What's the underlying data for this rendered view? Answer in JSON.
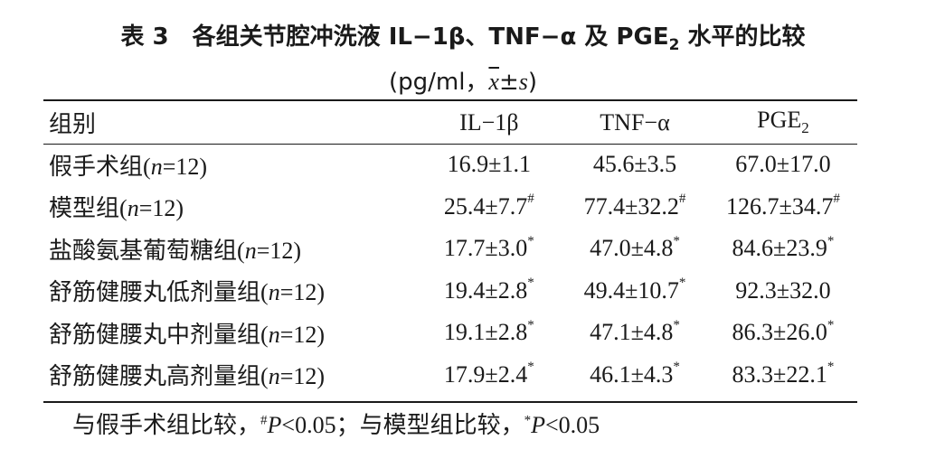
{
  "title": {
    "line1_prefix": "表 3　各组关节腔冲洗液 IL−1β、TNF−α 及 PGE",
    "line1_sub": "2",
    "line1_suffix": " 水平的比较",
    "unit_prefix": "(pg/ml，",
    "unit_xbar": "x",
    "unit_pm": "±",
    "unit_s": "s",
    "unit_suffix": ")"
  },
  "table": {
    "headers": {
      "group": "组别",
      "il1b": "IL−1β",
      "tnf": "TNF−α",
      "pge_main": "PGE",
      "pge_sub": "2"
    },
    "rows": [
      {
        "name": "假手术组",
        "n_label": "n",
        "n_value": "=12",
        "il1b": "16.9±1.1",
        "il1b_mark": "",
        "tnf": "45.6±3.5",
        "tnf_mark": "",
        "pge": "67.0±17.0",
        "pge_mark": ""
      },
      {
        "name": "模型组",
        "n_label": "n",
        "n_value": "=12",
        "il1b": "25.4±7.7",
        "il1b_mark": "#",
        "tnf": "77.4±32.2",
        "tnf_mark": "#",
        "pge": "126.7±34.7",
        "pge_mark": "#"
      },
      {
        "name": "盐酸氨基葡萄糖组",
        "n_label": "n",
        "n_value": "=12",
        "il1b": "17.7±3.0",
        "il1b_mark": "*",
        "tnf": "47.0±4.8",
        "tnf_mark": "*",
        "pge": "84.6±23.9",
        "pge_mark": "*"
      },
      {
        "name": "舒筋健腰丸低剂量组",
        "n_label": "n",
        "n_value": "=12",
        "il1b": "19.4±2.8",
        "il1b_mark": "*",
        "tnf": "49.4±10.7",
        "tnf_mark": "*",
        "pge": "92.3±32.0",
        "pge_mark": ""
      },
      {
        "name": "舒筋健腰丸中剂量组",
        "n_label": "n",
        "n_value": "=12",
        "il1b": "19.1±2.8",
        "il1b_mark": "*",
        "tnf": "47.1±4.8",
        "tnf_mark": "*",
        "pge": "86.3±26.0",
        "pge_mark": "*"
      },
      {
        "name": "舒筋健腰丸高剂量组",
        "n_label": "n",
        "n_value": "=12",
        "il1b": "17.9±2.4",
        "il1b_mark": "*",
        "tnf": "46.1±4.3",
        "tnf_mark": "*",
        "pge": "83.3±22.1",
        "pge_mark": "*"
      }
    ]
  },
  "footnote": {
    "part1": "与假手术组比较，",
    "mark1": "#",
    "p1": "P",
    "val1": "<0.05；与模型组比较，",
    "mark2": "*",
    "p2": "P",
    "val2": "<0.05"
  }
}
